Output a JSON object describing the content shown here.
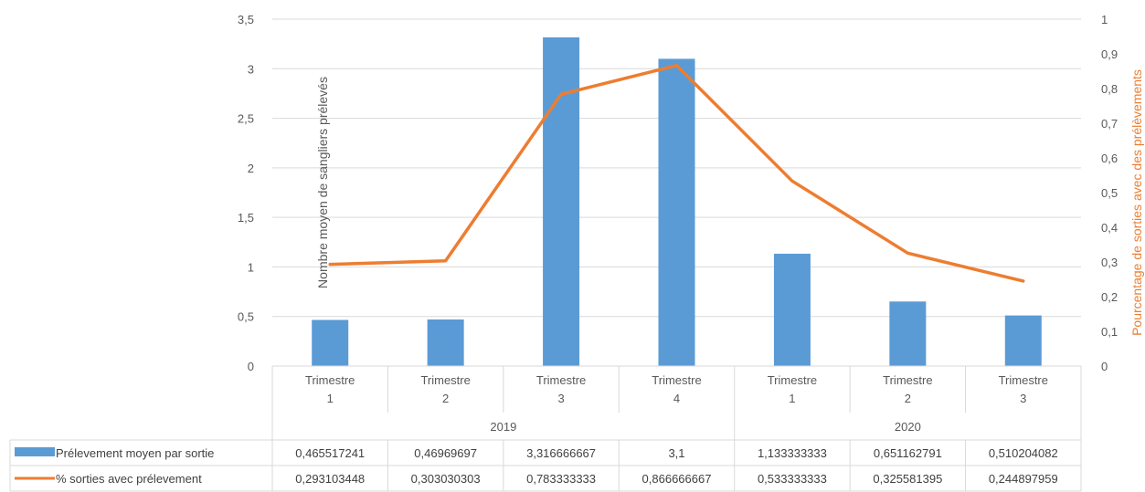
{
  "chart_data": {
    "type": "bar+line",
    "groups": [
      {
        "label": "2019",
        "categories": [
          "Trimestre 1",
          "Trimestre 2",
          "Trimestre 3",
          "Trimestre 4"
        ]
      },
      {
        "label": "2020",
        "categories": [
          "Trimestre 1",
          "Trimestre 2",
          "Trimestre 3"
        ]
      }
    ],
    "categories": [
      [
        "Trimestre",
        "1"
      ],
      [
        "Trimestre",
        "2"
      ],
      [
        "Trimestre",
        "3"
      ],
      [
        "Trimestre",
        "4"
      ],
      [
        "Trimestre",
        "1"
      ],
      [
        "Trimestre",
        "2"
      ],
      [
        "Trimestre",
        "3"
      ]
    ],
    "series": [
      {
        "name": "Prélevement moyen par sortie",
        "type": "bar",
        "axis": "left",
        "color": "#5B9BD5",
        "values": [
          0.465517241,
          0.46969697,
          3.316666667,
          3.1,
          1.133333333,
          0.651162791,
          0.510204082
        ],
        "labels": [
          "0,465517241",
          "0,46969697",
          "3,316666667",
          "3,1",
          "1,133333333",
          "0,651162791",
          "0,510204082"
        ]
      },
      {
        "name": "% sorties avec prélevement",
        "type": "line",
        "axis": "right",
        "color": "#ED7D31",
        "values": [
          0.293103448,
          0.303030303,
          0.783333333,
          0.866666667,
          0.533333333,
          0.325581395,
          0.244897959
        ],
        "labels": [
          "0,293103448",
          "0,303030303",
          "0,783333333",
          "0,866666667",
          "0,533333333",
          "0,325581395",
          "0,244897959"
        ]
      }
    ],
    "ylabel": "Nombre moyen de sangliers prélevés",
    "ylabel_right": "Pourcentage de sorties avec des prélèvements",
    "ylim": [
      0,
      3.5
    ],
    "ylim_right": [
      0,
      1
    ],
    "yticks": [
      "0",
      "0,5",
      "1",
      "1,5",
      "2",
      "2,5",
      "3",
      "3,5"
    ],
    "yticks_right": [
      "0",
      "0,1",
      "0,2",
      "0,3",
      "0,4",
      "0,5",
      "0,6",
      "0,7",
      "0,8",
      "0,9",
      "1"
    ],
    "grid": true,
    "legend": "data-table"
  }
}
